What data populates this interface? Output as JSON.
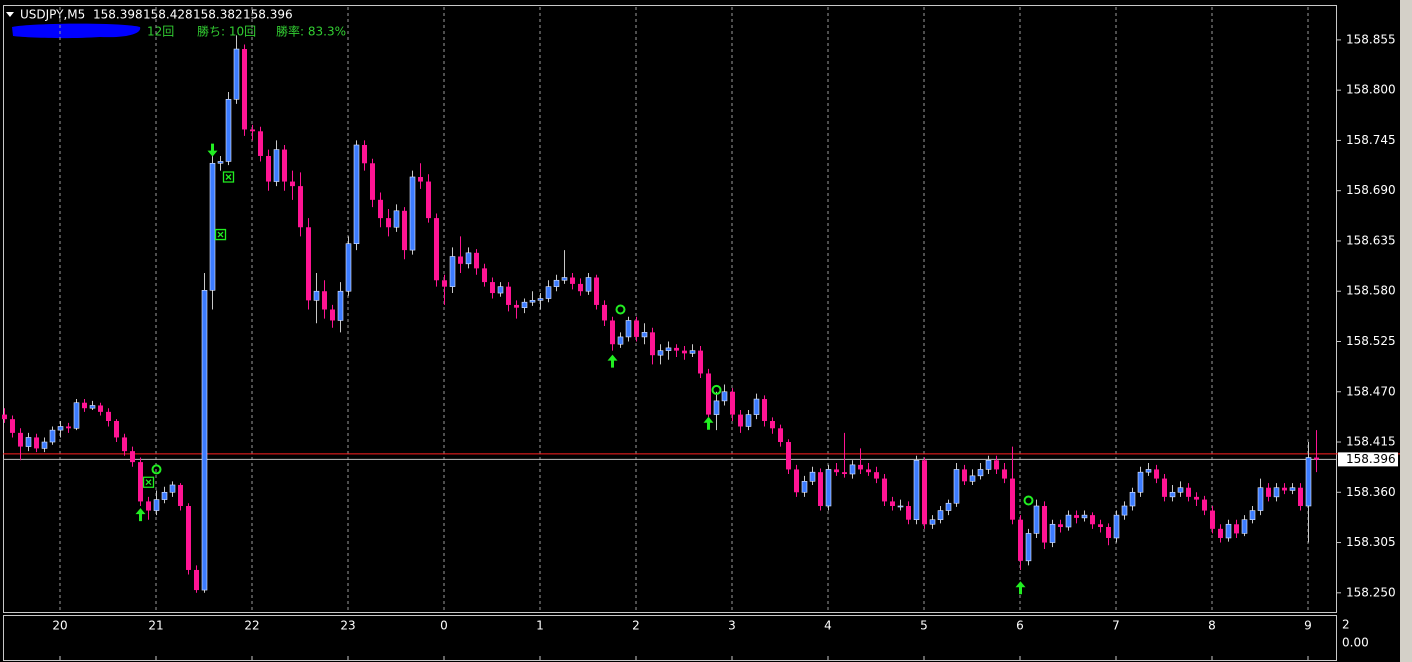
{
  "chart_data": {
    "type": "candlestick",
    "title": "USDJPY,M5",
    "stats": [
      "12回",
      "勝ち: 10回",
      "勝率: 83.3%"
    ],
    "up_color": "#3c7cff",
    "down_color": "#ff1493",
    "up_wick_color": "#c8c8c8",
    "signal_color": "#22ee22",
    "ylim": [
      158.229,
      158.891
    ],
    "yticks": [
      158.855,
      {
        "value": 158.8,
        "label": "158.800"
      },
      158.745,
      {
        "value": 158.69,
        "label": "158.690"
      },
      158.635,
      {
        "value": 158.58,
        "label": "158.580"
      },
      158.525,
      {
        "value": 158.47,
        "label": "158.470"
      },
      158.415,
      {
        "value": 158.36,
        "label": "158.360"
      },
      158.305,
      {
        "value": 158.25,
        "label": "158.250"
      }
    ],
    "xlim": [
      -0.5,
      166.5
    ],
    "xticks": [
      {
        "value": 7,
        "label": "20"
      },
      {
        "value": 19,
        "label": "21"
      },
      {
        "value": 31,
        "label": "22"
      },
      {
        "value": 43,
        "label": "23"
      },
      {
        "value": 55,
        "label": "0"
      },
      {
        "value": 67,
        "label": "1"
      },
      {
        "value": 79,
        "label": "2"
      },
      {
        "value": 91,
        "label": "3"
      },
      {
        "value": 103,
        "label": "4"
      },
      {
        "value": 115,
        "label": "5"
      },
      {
        "value": 127,
        "label": "6"
      },
      {
        "value": 139,
        "label": "7"
      },
      {
        "value": 151,
        "label": "8"
      },
      {
        "value": 163,
        "label": "9"
      }
    ],
    "grid_x": true,
    "bid": 158.396,
    "ask_line": 158.402,
    "subwindow_yticks": [
      2,
      {
        "value": 0,
        "label": "0.00"
      }
    ],
    "ohlc": [
      [
        158.445,
        158.452,
        158.436,
        158.44
      ],
      [
        158.44,
        158.444,
        158.42,
        158.425
      ],
      [
        158.425,
        158.43,
        158.395,
        158.41
      ],
      [
        158.41,
        158.425,
        158.405,
        158.42
      ],
      [
        158.42,
        158.424,
        158.404,
        158.408
      ],
      [
        158.408,
        158.42,
        158.404,
        158.415
      ],
      [
        158.415,
        158.432,
        158.412,
        158.428
      ],
      [
        158.428,
        158.438,
        158.42,
        158.432
      ],
      [
        158.432,
        158.436,
        158.425,
        158.43
      ],
      [
        158.43,
        158.462,
        158.428,
        158.458
      ],
      [
        158.458,
        158.462,
        158.448,
        158.452
      ],
      [
        158.452,
        158.46,
        158.45,
        158.455
      ],
      [
        158.455,
        158.458,
        158.444,
        158.448
      ],
      [
        158.448,
        158.452,
        158.432,
        158.438
      ],
      [
        158.438,
        158.44,
        158.415,
        158.42
      ],
      [
        158.42,
        158.424,
        158.4,
        158.405
      ],
      [
        158.405,
        158.41,
        158.388,
        158.393
      ],
      [
        158.393,
        158.398,
        158.345,
        158.35
      ],
      [
        158.35,
        158.355,
        158.33,
        158.34
      ],
      [
        158.34,
        158.362,
        158.335,
        158.352
      ],
      [
        158.352,
        158.366,
        158.348,
        158.36
      ],
      [
        158.36,
        158.372,
        158.355,
        158.368
      ],
      [
        158.368,
        158.37,
        158.34,
        158.345
      ],
      [
        158.345,
        158.348,
        158.27,
        158.275
      ],
      [
        158.275,
        158.28,
        158.25,
        158.253
      ],
      [
        158.253,
        158.6,
        158.25,
        158.581
      ],
      [
        158.581,
        158.735,
        158.56,
        158.72
      ],
      [
        158.72,
        158.728,
        158.712,
        158.722
      ],
      [
        158.722,
        158.798,
        158.718,
        158.79
      ],
      [
        158.79,
        158.86,
        158.785,
        158.845
      ],
      [
        158.845,
        158.85,
        158.75,
        158.757
      ],
      [
        158.757,
        158.762,
        158.745,
        158.755
      ],
      [
        158.755,
        158.76,
        158.722,
        158.728
      ],
      [
        158.728,
        158.735,
        158.69,
        158.7
      ],
      [
        158.7,
        158.745,
        158.695,
        158.735
      ],
      [
        158.735,
        158.74,
        158.69,
        158.7
      ],
      [
        158.7,
        158.712,
        158.68,
        158.695
      ],
      [
        158.695,
        158.71,
        158.64,
        158.65
      ],
      [
        158.65,
        158.66,
        158.56,
        158.57
      ],
      [
        158.57,
        158.6,
        158.545,
        158.58
      ],
      [
        158.58,
        158.592,
        158.55,
        158.56
      ],
      [
        158.56,
        158.565,
        158.54,
        158.548
      ],
      [
        158.548,
        158.59,
        158.535,
        158.58
      ],
      [
        158.58,
        158.64,
        158.575,
        158.632
      ],
      [
        158.632,
        158.745,
        158.625,
        158.74
      ],
      [
        158.74,
        158.745,
        158.712,
        158.72
      ],
      [
        158.72,
        158.725,
        158.672,
        158.68
      ],
      [
        158.68,
        158.688,
        158.65,
        158.66
      ],
      [
        158.66,
        158.67,
        158.64,
        158.65
      ],
      [
        158.65,
        158.675,
        158.645,
        158.668
      ],
      [
        158.668,
        158.672,
        158.615,
        158.625
      ],
      [
        158.625,
        158.712,
        158.62,
        158.705
      ],
      [
        158.705,
        158.72,
        158.692,
        158.7
      ],
      [
        158.7,
        158.708,
        158.655,
        158.66
      ],
      [
        158.66,
        158.665,
        158.585,
        158.592
      ],
      [
        158.592,
        158.598,
        158.565,
        158.585
      ],
      [
        158.585,
        158.628,
        158.578,
        158.618
      ],
      [
        158.618,
        158.64,
        158.6,
        158.61
      ],
      [
        158.61,
        158.628,
        158.605,
        158.622
      ],
      [
        158.622,
        158.626,
        158.598,
        158.605
      ],
      [
        158.605,
        158.61,
        158.585,
        158.59
      ],
      [
        158.59,
        158.595,
        158.572,
        158.578
      ],
      [
        158.578,
        158.59,
        158.574,
        158.585
      ],
      [
        158.585,
        158.59,
        158.558,
        158.565
      ],
      [
        158.565,
        158.57,
        158.55,
        158.562
      ],
      [
        158.562,
        158.572,
        158.556,
        158.568
      ],
      [
        158.568,
        158.58,
        158.564,
        158.57
      ],
      [
        158.57,
        158.578,
        158.56,
        158.572
      ],
      [
        158.572,
        158.592,
        158.568,
        158.585
      ],
      [
        158.585,
        158.598,
        158.58,
        158.592
      ],
      [
        158.592,
        158.625,
        158.588,
        158.595
      ],
      [
        158.595,
        158.6,
        158.582,
        158.588
      ],
      [
        158.588,
        158.594,
        158.575,
        158.58
      ],
      [
        158.58,
        158.6,
        158.576,
        158.595
      ],
      [
        158.595,
        158.598,
        158.56,
        158.565
      ],
      [
        158.565,
        158.57,
        158.542,
        158.548
      ],
      [
        158.548,
        158.552,
        158.515,
        158.522
      ],
      [
        158.522,
        158.535,
        158.518,
        158.53
      ],
      [
        158.53,
        158.552,
        158.525,
        158.548
      ],
      [
        158.548,
        158.552,
        158.525,
        158.53
      ],
      [
        158.53,
        158.545,
        158.522,
        158.535
      ],
      [
        158.535,
        158.54,
        158.5,
        158.51
      ],
      [
        158.51,
        158.522,
        158.5,
        158.515
      ],
      [
        158.515,
        158.525,
        158.505,
        158.518
      ],
      [
        158.518,
        158.522,
        158.508,
        158.515
      ],
      [
        158.515,
        158.52,
        158.505,
        158.512
      ],
      [
        158.512,
        158.522,
        158.508,
        158.515
      ],
      [
        158.515,
        158.52,
        158.485,
        158.49
      ],
      [
        158.49,
        158.495,
        158.438,
        158.445
      ],
      [
        158.445,
        158.47,
        158.428,
        158.46
      ],
      [
        158.46,
        158.478,
        158.455,
        158.47
      ],
      [
        158.47,
        158.474,
        158.438,
        158.445
      ],
      [
        158.445,
        158.45,
        158.425,
        158.432
      ],
      [
        158.432,
        158.45,
        158.428,
        158.445
      ],
      [
        158.445,
        158.468,
        158.44,
        158.462
      ],
      [
        158.462,
        158.466,
        158.432,
        158.438
      ],
      [
        158.438,
        158.442,
        158.424,
        158.43
      ],
      [
        158.43,
        158.434,
        158.41,
        158.415
      ],
      [
        158.415,
        158.418,
        158.38,
        158.385
      ],
      [
        158.385,
        158.39,
        158.355,
        158.36
      ],
      [
        158.36,
        158.378,
        158.355,
        158.372
      ],
      [
        158.372,
        158.388,
        158.368,
        158.382
      ],
      [
        158.382,
        158.386,
        158.34,
        158.345
      ],
      [
        158.345,
        158.39,
        158.34,
        158.385
      ],
      [
        158.385,
        158.392,
        158.378,
        158.382
      ],
      [
        158.382,
        158.425,
        158.376,
        158.38
      ],
      [
        158.38,
        158.395,
        158.375,
        158.39
      ],
      [
        158.39,
        158.408,
        158.38,
        158.385
      ],
      [
        158.385,
        158.392,
        158.378,
        158.382
      ],
      [
        158.382,
        158.388,
        158.37,
        158.375
      ],
      [
        158.375,
        158.38,
        158.345,
        158.35
      ],
      [
        158.35,
        158.355,
        158.34,
        158.345
      ],
      [
        158.345,
        158.352,
        158.34,
        158.345
      ],
      [
        158.345,
        158.35,
        158.325,
        158.33
      ],
      [
        158.33,
        158.4,
        158.325,
        158.395
      ],
      [
        158.395,
        158.398,
        158.32,
        158.325
      ],
      [
        158.325,
        158.335,
        158.32,
        158.33
      ],
      [
        158.33,
        158.345,
        158.326,
        158.34
      ],
      [
        158.34,
        158.352,
        158.335,
        158.348
      ],
      [
        158.348,
        158.392,
        158.344,
        158.385
      ],
      [
        158.385,
        158.39,
        158.368,
        158.372
      ],
      [
        158.372,
        158.385,
        158.368,
        158.378
      ],
      [
        158.378,
        158.392,
        158.374,
        158.385
      ],
      [
        158.385,
        158.4,
        158.38,
        158.395
      ],
      [
        158.395,
        158.4,
        158.38,
        158.385
      ],
      [
        158.385,
        158.392,
        158.37,
        158.375
      ],
      [
        158.375,
        158.41,
        158.325,
        158.33
      ],
      [
        158.33,
        158.335,
        158.275,
        158.285
      ],
      [
        158.285,
        158.32,
        158.28,
        158.315
      ],
      [
        158.315,
        158.352,
        158.31,
        158.345
      ],
      [
        158.345,
        158.35,
        158.298,
        158.305
      ],
      [
        158.305,
        158.33,
        158.3,
        158.325
      ],
      [
        158.325,
        158.33,
        158.316,
        158.322
      ],
      [
        158.322,
        158.34,
        158.318,
        158.335
      ],
      [
        158.335,
        158.34,
        158.326,
        158.332
      ],
      [
        158.332,
        158.34,
        158.328,
        158.335
      ],
      [
        158.335,
        158.338,
        158.32,
        158.325
      ],
      [
        158.325,
        158.33,
        158.316,
        158.322
      ],
      [
        158.322,
        158.326,
        158.302,
        158.31
      ],
      [
        158.31,
        158.34,
        158.305,
        158.335
      ],
      [
        158.335,
        158.35,
        158.33,
        158.345
      ],
      [
        158.345,
        158.365,
        158.34,
        158.36
      ],
      [
        158.36,
        158.388,
        158.355,
        158.382
      ],
      [
        158.382,
        158.392,
        158.378,
        158.385
      ],
      [
        158.385,
        158.39,
        158.37,
        158.375
      ],
      [
        158.375,
        158.38,
        158.35,
        158.355
      ],
      [
        158.355,
        158.368,
        158.35,
        158.36
      ],
      [
        158.36,
        158.372,
        158.355,
        158.365
      ],
      [
        158.365,
        158.37,
        158.35,
        158.355
      ],
      [
        158.355,
        158.36,
        158.345,
        158.352
      ],
      [
        158.352,
        158.356,
        158.335,
        158.34
      ],
      [
        158.34,
        158.345,
        158.315,
        158.32
      ],
      [
        158.32,
        158.325,
        158.305,
        158.31
      ],
      [
        158.31,
        158.33,
        158.306,
        158.325
      ],
      [
        158.325,
        158.33,
        158.31,
        158.315
      ],
      [
        158.315,
        158.335,
        158.312,
        158.33
      ],
      [
        158.33,
        158.345,
        158.326,
        158.34
      ],
      [
        158.34,
        158.375,
        158.335,
        158.365
      ],
      [
        158.365,
        158.37,
        158.35,
        158.355
      ],
      [
        158.355,
        158.37,
        158.35,
        158.365
      ],
      [
        158.365,
        158.37,
        158.358,
        158.362
      ],
      [
        158.362,
        158.37,
        158.358,
        158.365
      ],
      [
        158.365,
        158.37,
        158.34,
        158.345
      ],
      [
        158.345,
        158.415,
        158.305,
        158.398
      ],
      [
        158.398,
        158.428,
        158.382,
        158.396
      ]
    ],
    "signals": [
      {
        "kind": "arrow-up",
        "index": 17,
        "price": 158.335
      },
      {
        "kind": "cross-box",
        "index": 18,
        "price": 158.371
      },
      {
        "kind": "circle",
        "index": 19,
        "price": 158.385
      },
      {
        "kind": "arrow-down",
        "index": 26,
        "price": 158.735
      },
      {
        "kind": "cross-box",
        "index": 27,
        "price": 158.642
      },
      {
        "kind": "cross-box",
        "index": 28,
        "price": 158.705
      },
      {
        "kind": "arrow-up",
        "index": 76,
        "price": 158.503
      },
      {
        "kind": "circle",
        "index": 77,
        "price": 158.56
      },
      {
        "kind": "arrow-up",
        "index": 88,
        "price": 158.435
      },
      {
        "kind": "circle",
        "index": 89,
        "price": 158.472
      },
      {
        "kind": "arrow-up",
        "index": 127,
        "price": 158.255
      },
      {
        "kind": "circle",
        "index": 128,
        "price": 158.351
      }
    ]
  }
}
